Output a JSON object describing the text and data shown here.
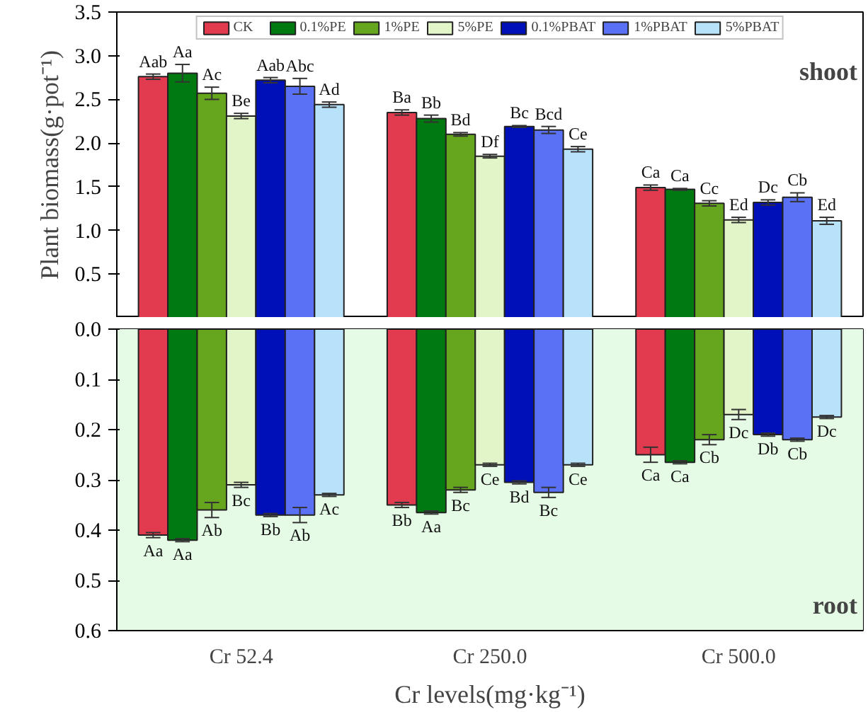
{
  "chart_data": [
    {
      "type": "bar",
      "ylabel": "Plant biomass(g·pot⁻¹)",
      "ylim": [
        0,
        3.5
      ],
      "yticks": [
        {
          "value": 0,
          "label": null
        },
        {
          "value": 0.5,
          "label": "0.5"
        },
        {
          "value": 1,
          "label": "1.0"
        },
        {
          "value": 1.5,
          "label": "1.5"
        },
        {
          "value": 2,
          "label": "2.0"
        },
        {
          "value": 2.5,
          "label": "2.5"
        },
        {
          "value": 3,
          "label": "3.0"
        },
        {
          "value": 3.5,
          "label": "3.5"
        }
      ],
      "tick_labels": "y",
      "grid": false,
      "legend": "top",
      "annotations": [
        "shoot"
      ],
      "series": [
        {
          "name": "CK",
          "color": "#e23a4e",
          "values": [
            2.76,
            2.35,
            1.49
          ],
          "errors": [
            0.03,
            0.03,
            0.03
          ],
          "value_labels": [
            "Aab",
            "Ba",
            "Ca"
          ]
        },
        {
          "name": "0.1%PE",
          "color": "#007a10",
          "values": [
            2.8,
            2.28,
            1.47
          ],
          "errors": [
            0.1,
            0.04,
            0.01
          ],
          "value_labels": [
            "Aa",
            "Bb",
            "Ca"
          ]
        },
        {
          "name": "1%PE",
          "color": "#66a61e",
          "values": [
            2.57,
            2.1,
            1.31
          ],
          "errors": [
            0.07,
            0.02,
            0.03
          ],
          "value_labels": [
            "Ac",
            "Bd",
            "Cc"
          ]
        },
        {
          "name": "5%PE",
          "color": "#e2f5c8",
          "values": [
            2.31,
            1.85,
            1.12
          ],
          "errors": [
            0.03,
            0.02,
            0.03
          ],
          "value_labels": [
            "Be",
            "Df",
            "Ed"
          ]
        },
        {
          "name": "0.1%PBAT",
          "color": "#0010b8",
          "values": [
            2.72,
            2.19,
            1.32
          ],
          "errors": [
            0.03,
            0.01,
            0.03
          ],
          "value_labels": [
            "Aab",
            "Bc",
            "Dc"
          ]
        },
        {
          "name": "1%PBAT",
          "color": "#5a70f5",
          "values": [
            2.65,
            2.15,
            1.38
          ],
          "errors": [
            0.09,
            0.04,
            0.05
          ],
          "value_labels": [
            "Abc",
            "Bcd",
            "Cb"
          ]
        },
        {
          "name": "5%PBAT",
          "color": "#b8e2fa",
          "values": [
            2.44,
            1.93,
            1.11
          ],
          "errors": [
            0.03,
            0.03,
            0.04
          ],
          "value_labels": [
            "Ad",
            "Ce",
            "Ed"
          ]
        }
      ]
    },
    {
      "type": "bar",
      "xlabel": "Cr levels(mg·kg⁻¹)",
      "categories": [
        "Cr 52.4",
        "Cr 250.0",
        "Cr 500.0"
      ],
      "ylim": [
        0.6,
        0
      ],
      "yticks": [
        {
          "value": 0,
          "label": "0.0"
        },
        {
          "value": 0.1,
          "label": "0.1"
        },
        {
          "value": 0.2,
          "label": "0.2"
        },
        {
          "value": 0.3,
          "label": "0.3"
        },
        {
          "value": 0.4,
          "label": "0.4"
        },
        {
          "value": 0.5,
          "label": "0.5"
        },
        {
          "value": 0.6,
          "label": "0.6"
        }
      ],
      "grid": false,
      "annotations": [
        "root"
      ],
      "bands": [
        {
          "axis": "y",
          "from": 0,
          "to": 0.6,
          "color": "#e6fbe6"
        }
      ],
      "series": [
        {
          "color": "#e23a4e",
          "values": [
            0.41,
            0.35,
            0.25
          ],
          "errors": [
            0.005,
            0.005,
            0.015
          ],
          "value_labels": [
            "Aa",
            "Bb",
            "Ca"
          ]
        },
        {
          "color": "#007a10",
          "values": [
            0.42,
            0.365,
            0.265
          ],
          "errors": [
            0.003,
            0.003,
            0.003
          ],
          "value_labels": [
            "Aa",
            "Aa",
            "Ca"
          ]
        },
        {
          "color": "#66a61e",
          "values": [
            0.36,
            0.32,
            0.22
          ],
          "errors": [
            0.015,
            0.005,
            0.01
          ],
          "value_labels": [
            "Ab",
            "Bc",
            "Cb"
          ]
        },
        {
          "color": "#e2f5c8",
          "values": [
            0.31,
            0.27,
            0.17
          ],
          "errors": [
            0.005,
            0.003,
            0.01
          ],
          "value_labels": [
            "Bc",
            "Ce",
            "Dc"
          ]
        },
        {
          "color": "#0010b8",
          "values": [
            0.37,
            0.305,
            0.21
          ],
          "errors": [
            0.003,
            0.003,
            0.003
          ],
          "value_labels": [
            "Bb",
            "Bd",
            "Db"
          ]
        },
        {
          "color": "#5a70f5",
          "values": [
            0.37,
            0.325,
            0.22
          ],
          "errors": [
            0.015,
            0.01,
            0.003
          ],
          "value_labels": [
            "Ab",
            "Bc",
            "Cb"
          ]
        },
        {
          "color": "#b8e2fa",
          "values": [
            0.33,
            0.27,
            0.175
          ],
          "errors": [
            0.003,
            0.003,
            0.003
          ],
          "value_labels": [
            "Ac",
            "Ce",
            "Dc"
          ]
        }
      ]
    }
  ]
}
